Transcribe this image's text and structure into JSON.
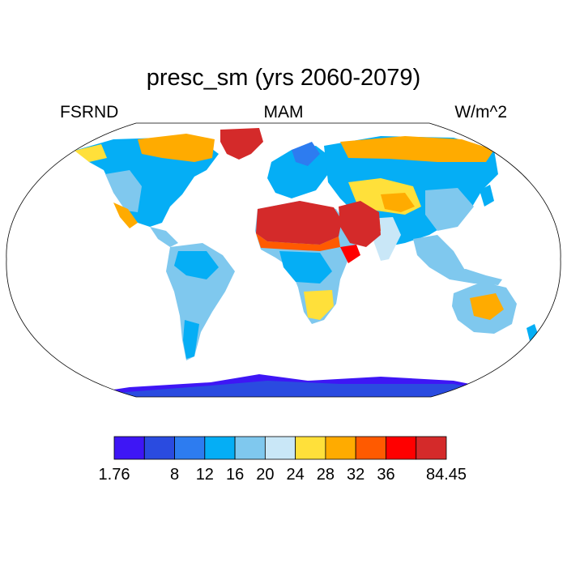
{
  "title": "presc_sm (yrs 2060-2079)",
  "left_label": "FSRND",
  "center_label": "MAM",
  "right_label": "W/m^2",
  "colorbar": {
    "colors": [
      "#3e16f5",
      "#2a4be0",
      "#2d7cf0",
      "#05aef5",
      "#7fc8ee",
      "#c9e7f7",
      "#ffe03a",
      "#ffab00",
      "#ff5a00",
      "#ff0000",
      "#d42a2a"
    ],
    "tick_labels": [
      "1.76",
      "8",
      "12",
      "16",
      "20",
      "24",
      "28",
      "32",
      "36",
      "84.45"
    ]
  },
  "map": {
    "projection": "robinson",
    "regions": [
      {
        "name": "greenland",
        "level": 10
      },
      {
        "name": "sahara",
        "level": 10
      },
      {
        "name": "arabia",
        "level": 10
      },
      {
        "name": "antarctica",
        "level": 0
      },
      {
        "name": "arctic-canada",
        "level": 7
      },
      {
        "name": "siberia-north",
        "level": 7
      },
      {
        "name": "amazon",
        "level": 4
      },
      {
        "name": "central-africa",
        "level": 4
      },
      {
        "name": "australia-interior",
        "level": 7
      }
    ]
  }
}
